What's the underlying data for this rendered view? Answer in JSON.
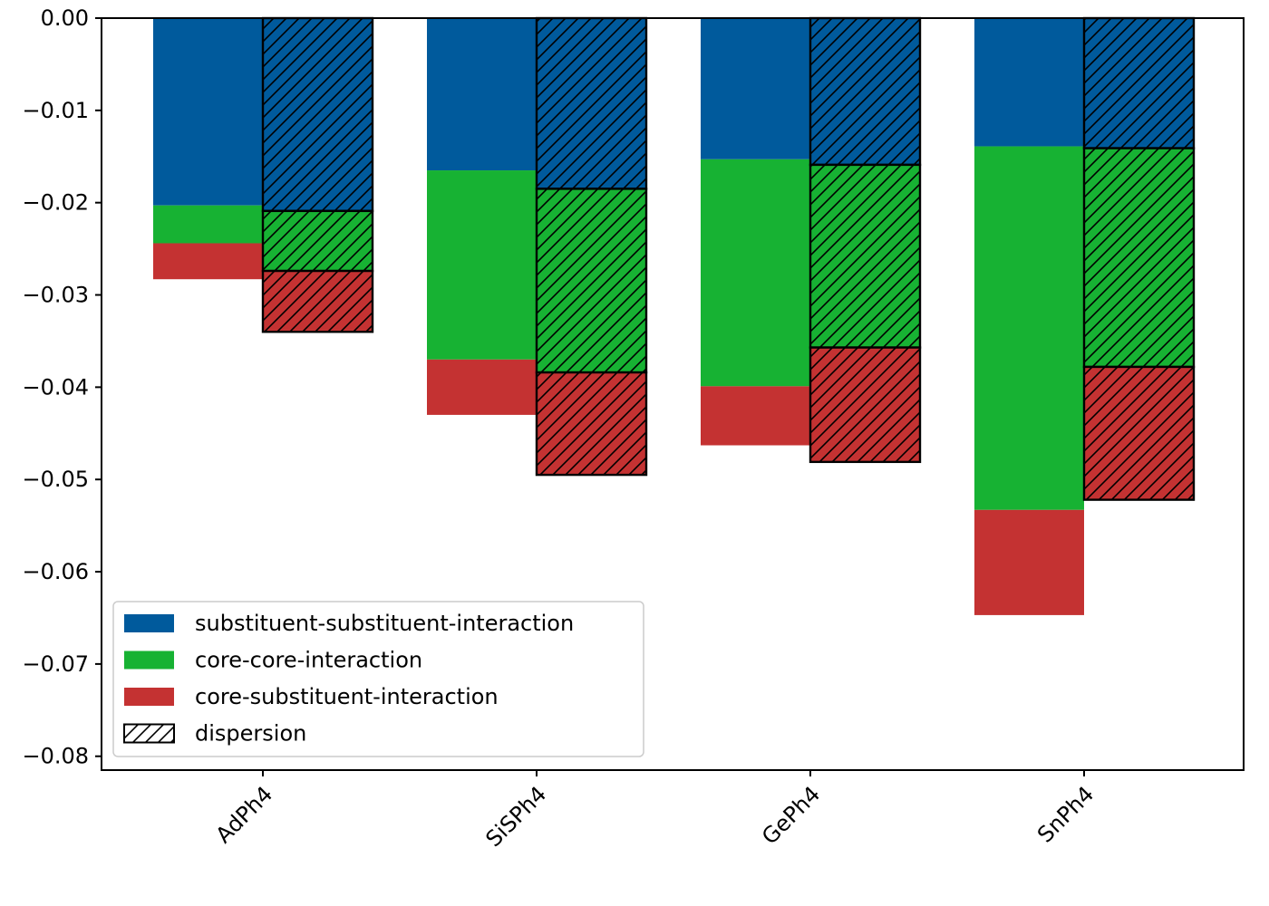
{
  "chart_data": {
    "type": "bar",
    "stacked": true,
    "title": "",
    "xlabel": "",
    "ylabel": "",
    "categories": [
      "AdPh4",
      "SiSPh4",
      "GePh4",
      "SnPh4"
    ],
    "ylim": [
      -0.0815,
      0.0
    ],
    "yticks": [
      0.0,
      -0.01,
      -0.02,
      -0.03,
      -0.04,
      -0.05,
      -0.06,
      -0.07,
      -0.08
    ],
    "ytick_labels": [
      "0.00",
      "−0.01",
      "−0.02",
      "−0.03",
      "−0.04",
      "−0.05",
      "−0.06",
      "−0.07",
      "−0.08"
    ],
    "grid": false,
    "bar_groups": [
      {
        "hatched": false,
        "series": [
          {
            "name": "substituent-substituent-interaction",
            "color": "#005a9c",
            "values": [
              -0.0203,
              -0.0165,
              -0.0153,
              -0.0139
            ]
          },
          {
            "name": "core-core-interaction",
            "color": "#17b233",
            "values": [
              -0.0041,
              -0.0205,
              -0.0246,
              -0.0394
            ]
          },
          {
            "name": "core-substituent-interaction",
            "color": "#c43232",
            "values": [
              -0.0039,
              -0.006,
              -0.0064,
              -0.0114
            ]
          }
        ]
      },
      {
        "hatched": true,
        "series": [
          {
            "name": "substituent-substituent-interaction",
            "color": "#005a9c",
            "values": [
              -0.0209,
              -0.0185,
              -0.0159,
              -0.0141
            ]
          },
          {
            "name": "core-core-interaction",
            "color": "#17b233",
            "values": [
              -0.0065,
              -0.0199,
              -0.0198,
              -0.0237
            ]
          },
          {
            "name": "core-substituent-interaction",
            "color": "#c43232",
            "values": [
              -0.0066,
              -0.0111,
              -0.0124,
              -0.0144
            ]
          }
        ]
      }
    ],
    "legend": {
      "placement": "lower-left",
      "entries": [
        {
          "label": "substituent-substituent-interaction",
          "color": "#005a9c",
          "hatched": false
        },
        {
          "label": "core-core-interaction",
          "color": "#17b233",
          "hatched": false
        },
        {
          "label": "core-substituent-interaction",
          "color": "#c43232",
          "hatched": false
        },
        {
          "label": "dispersion",
          "color": "#ffffff",
          "hatched": true
        }
      ]
    }
  }
}
